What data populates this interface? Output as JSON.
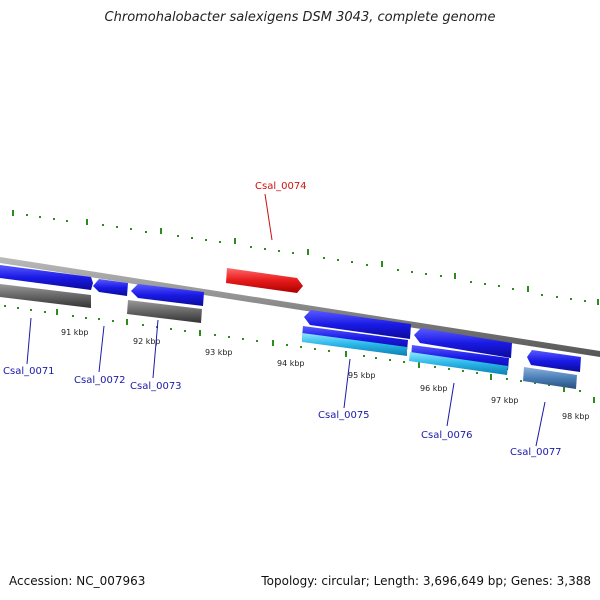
{
  "title": "Chromohalobacter salexigens DSM 3043, complete genome",
  "footer": {
    "accession": "Accession: NC_007963",
    "summary": "Topology: circular; Length: 3,696,649 bp; Genes: 3,388"
  },
  "map": {
    "kbp_labels": [
      "91 kbp",
      "92 kbp",
      "93 kbp",
      "94 kbp",
      "95 kbp",
      "96 kbp",
      "97 kbp",
      "98 kbp"
    ],
    "gene_labels": [
      "Csal_0071",
      "Csal_0072",
      "Csal_0073",
      "Csal_0074",
      "Csal_0075",
      "Csal_0076",
      "Csal_0077"
    ],
    "colors": {
      "backbone": "#888888",
      "forward_gene": "#1a1ae6",
      "cds_feature": "#666666",
      "highlight_gene": "#e61a1a",
      "rna_feature": "#29b6e8",
      "pseudo_feature": "#4a7fb8",
      "tick": "#2e8b1e",
      "label_blue": "#1a1aa8",
      "label_red": "#cc1111"
    }
  }
}
